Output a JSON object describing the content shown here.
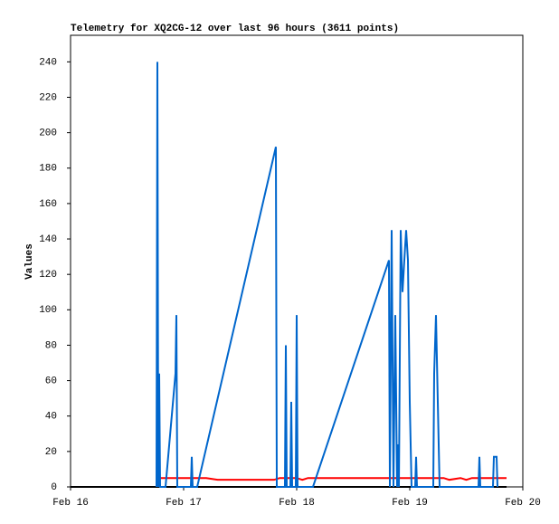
{
  "chart_data": {
    "type": "line",
    "title": "Telemetry for XQ2CG-12 over last 96 hours (3611 points)",
    "y_label": "Values",
    "xlim": [
      0,
      4
    ],
    "xticks": [
      {
        "value": 0,
        "label": "Feb 16"
      },
      {
        "value": 1,
        "label": "Feb 17"
      },
      {
        "value": 2,
        "label": "Feb 18"
      },
      {
        "value": 3,
        "label": "Feb 19"
      },
      {
        "value": 4,
        "label": "Feb 20"
      }
    ],
    "ylim": [
      0,
      255
    ],
    "yticks": [
      0,
      20,
      40,
      60,
      80,
      100,
      120,
      140,
      160,
      180,
      200,
      220,
      240
    ],
    "grid": false,
    "series": [
      {
        "color": "#000000",
        "x": [
          0,
          3.856
        ],
        "values": [
          0,
          0
        ]
      },
      {
        "color": "#ff0000",
        "x": [
          0.776,
          1.2,
          1.3,
          1.8,
          1.85,
          2.0,
          2.05,
          2.1,
          3.3,
          3.35,
          3.45,
          3.5,
          3.55,
          3.856
        ],
        "values": [
          5,
          5,
          4,
          4,
          5,
          5,
          4,
          5,
          5,
          4,
          5,
          4,
          5,
          5
        ]
      },
      {
        "color": "#0066cc",
        "x": [
          0.76,
          0.768,
          0.776,
          0.784,
          0.792,
          0.84,
          0.928,
          0.936,
          0.944,
          1.064,
          1.072,
          1.08,
          1.12,
          1.816,
          1.824,
          1.896,
          1.904,
          1.912,
          1.944,
          1.952,
          1.96,
          1.992,
          2.0,
          2.008,
          2.144,
          2.816,
          2.824,
          2.84,
          2.856,
          2.872,
          2.888,
          2.896,
          2.904,
          2.92,
          2.936,
          2.952,
          2.968,
          2.984,
          3.0,
          3.016,
          3.048,
          3.056,
          3.064,
          3.208,
          3.216,
          3.232,
          3.248,
          3.264,
          3.608,
          3.616,
          3.624,
          3.736,
          3.744,
          3.768,
          3.776
        ],
        "values": [
          0,
          240,
          0,
          64,
          0,
          0,
          64,
          97,
          0,
          0,
          17,
          0,
          0,
          192,
          0,
          0,
          80,
          0,
          0,
          48,
          0,
          0,
          97,
          0,
          0,
          128,
          0,
          145,
          0,
          97,
          0,
          24,
          0,
          145,
          110,
          128,
          145,
          128,
          48,
          0,
          0,
          17,
          0,
          0,
          64,
          97,
          48,
          0,
          0,
          17,
          0,
          0,
          17,
          17,
          0
        ]
      }
    ]
  }
}
